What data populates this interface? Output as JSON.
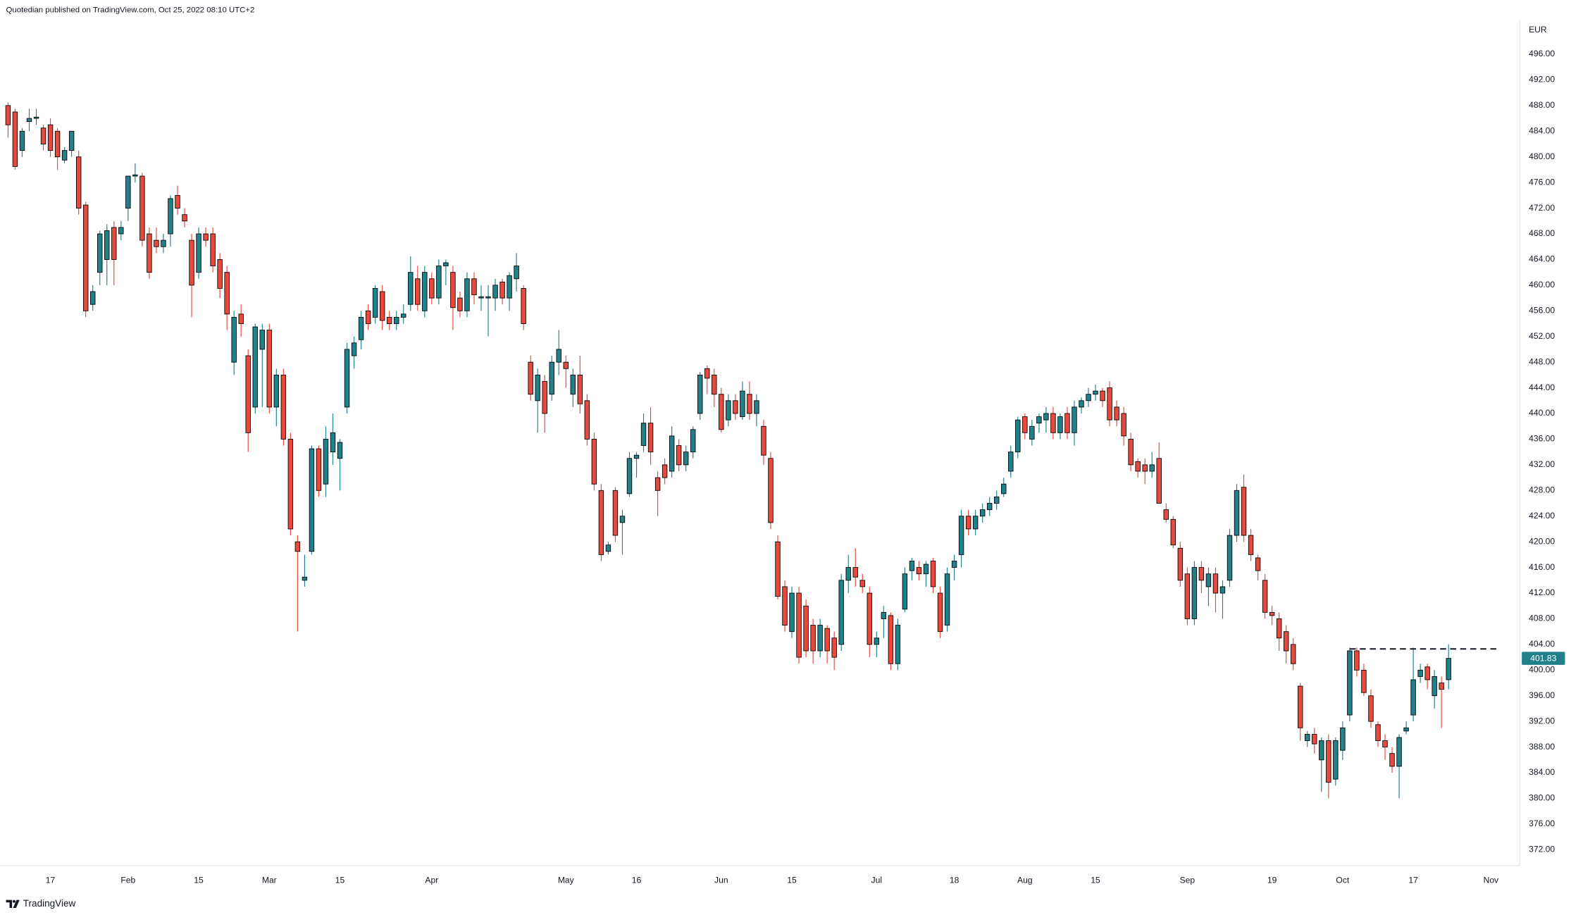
{
  "chart_data": {
    "type": "candlestick",
    "title": "Quotedian published on TradingView.com, Oct 25, 2022 08:10 UTC+2",
    "currency": "EUR",
    "up_color": "#22808a",
    "down_color": "#e8493c",
    "xlim": [
      -1.14,
      213.94
    ],
    "ylim": [
      369.5,
      504.45
    ],
    "xticks": [
      {
        "value": 6,
        "label": "17"
      },
      {
        "value": 17,
        "label": "Feb"
      },
      {
        "value": 27,
        "label": "15"
      },
      {
        "value": 37,
        "label": "Mar"
      },
      {
        "value": 47,
        "label": "15"
      },
      {
        "value": 60,
        "label": "Apr"
      },
      {
        "value": 79,
        "label": "May"
      },
      {
        "value": 89,
        "label": "16"
      },
      {
        "value": 101,
        "label": "Jun"
      },
      {
        "value": 111,
        "label": "15"
      },
      {
        "value": 123,
        "label": "Jul"
      },
      {
        "value": 134,
        "label": "18"
      },
      {
        "value": 144,
        "label": "Aug"
      },
      {
        "value": 154,
        "label": "15"
      },
      {
        "value": 167,
        "label": "Sep"
      },
      {
        "value": 179,
        "label": "19"
      },
      {
        "value": 189,
        "label": "Oct"
      },
      {
        "value": 199,
        "label": "17"
      },
      {
        "value": 210,
        "label": "Nov"
      }
    ],
    "yticks": [
      {
        "value": 372,
        "label": "372.00"
      },
      {
        "value": 376,
        "label": "376.00"
      },
      {
        "value": 380,
        "label": "380.00"
      },
      {
        "value": 384,
        "label": "384.00"
      },
      {
        "value": 388,
        "label": "388.00"
      },
      {
        "value": 392,
        "label": "392.00"
      },
      {
        "value": 396,
        "label": "396.00"
      },
      {
        "value": 400,
        "label": "400.00"
      },
      {
        "value": 404,
        "label": "404.00"
      },
      {
        "value": 408,
        "label": "408.00"
      },
      {
        "value": 412,
        "label": "412.00"
      },
      {
        "value": 416,
        "label": "416.00"
      },
      {
        "value": 420,
        "label": "420.00"
      },
      {
        "value": 424,
        "label": "424.00"
      },
      {
        "value": 428,
        "label": "428.00"
      },
      {
        "value": 432,
        "label": "432.00"
      },
      {
        "value": 436,
        "label": "436.00"
      },
      {
        "value": 440,
        "label": "440.00"
      },
      {
        "value": 444,
        "label": "444.00"
      },
      {
        "value": 448,
        "label": "448.00"
      },
      {
        "value": 452,
        "label": "452.00"
      },
      {
        "value": 456,
        "label": "456.00"
      },
      {
        "value": 460,
        "label": "460.00"
      },
      {
        "value": 464,
        "label": "464.00"
      },
      {
        "value": 468,
        "label": "468.00"
      },
      {
        "value": 472,
        "label": "472.00"
      },
      {
        "value": 476,
        "label": "476.00"
      },
      {
        "value": 480,
        "label": "480.00"
      },
      {
        "value": 484,
        "label": "484.00"
      },
      {
        "value": 488,
        "label": "488.00"
      },
      {
        "value": 492,
        "label": "492.00"
      },
      {
        "value": 496,
        "label": "496.00"
      }
    ],
    "hline": {
      "value": 403.3,
      "from": 190,
      "to": 211,
      "color": "#131722"
    },
    "candles": [
      [
        488,
        488.5,
        483,
        485
      ],
      [
        487,
        487.5,
        478,
        478.5
      ],
      [
        481,
        484.5,
        480,
        484
      ],
      [
        485.5,
        487.5,
        484,
        486
      ],
      [
        486,
        487.5,
        485,
        486.2
      ],
      [
        484.5,
        485,
        481,
        482
      ],
      [
        485,
        486,
        480,
        481
      ],
      [
        484,
        484.5,
        478,
        480
      ],
      [
        479.5,
        481.5,
        479,
        481
      ],
      [
        481,
        484,
        480,
        484
      ],
      [
        480,
        481,
        471,
        472
      ],
      [
        472.5,
        473,
        455,
        456
      ],
      [
        457,
        460,
        456,
        459
      ],
      [
        462,
        468.5,
        460,
        468
      ],
      [
        464,
        469.5,
        460,
        468.5
      ],
      [
        469,
        470,
        460,
        464
      ],
      [
        468,
        470,
        467,
        469
      ],
      [
        472,
        477,
        470,
        477
      ],
      [
        477,
        479,
        476,
        477.2
      ],
      [
        477,
        477.5,
        466,
        467
      ],
      [
        468,
        469,
        461,
        462
      ],
      [
        467,
        469,
        465,
        466
      ],
      [
        466,
        468,
        465,
        467
      ],
      [
        468,
        474,
        466,
        473.5
      ],
      [
        474,
        475.5,
        471,
        472
      ],
      [
        471,
        472,
        469,
        470
      ],
      [
        467,
        468,
        455,
        460
      ],
      [
        462,
        469,
        461,
        468
      ],
      [
        468,
        469,
        466,
        467
      ],
      [
        468,
        469,
        462,
        463
      ],
      [
        464,
        465,
        458,
        459.5
      ],
      [
        462,
        463,
        453,
        455.5
      ],
      [
        448,
        456,
        446,
        455
      ],
      [
        455.5,
        457,
        452,
        454
      ],
      [
        449,
        450,
        434,
        437
      ],
      [
        441,
        454,
        440,
        453.5
      ],
      [
        450,
        454,
        441,
        453
      ],
      [
        453,
        454,
        440,
        441
      ],
      [
        441,
        447,
        438,
        446
      ],
      [
        446,
        447,
        435,
        436
      ],
      [
        436,
        437,
        421,
        422
      ],
      [
        420,
        421,
        406,
        418.5
      ],
      [
        414,
        418,
        413,
        414.5
      ],
      [
        418.5,
        435,
        418,
        434.5
      ],
      [
        434.5,
        435,
        427,
        428
      ],
      [
        429,
        438,
        427,
        436
      ],
      [
        434,
        440,
        432,
        437
      ],
      [
        433,
        436,
        428,
        435.5
      ],
      [
        441,
        451,
        440,
        450
      ],
      [
        449,
        452,
        447,
        451
      ],
      [
        451.5,
        456,
        450,
        455
      ],
      [
        456,
        457,
        453,
        454
      ],
      [
        455,
        460,
        454,
        459.5
      ],
      [
        459,
        460,
        453,
        454.5
      ],
      [
        455,
        456,
        453,
        454
      ],
      [
        454,
        456,
        453,
        455
      ],
      [
        455,
        457,
        454,
        455.5
      ],
      [
        457,
        464.5,
        456,
        462
      ],
      [
        461,
        463,
        456,
        457
      ],
      [
        456,
        463,
        455,
        462
      ],
      [
        461,
        462,
        457,
        458
      ],
      [
        458,
        464,
        457,
        463
      ],
      [
        463,
        464,
        460,
        463.5
      ],
      [
        462,
        463,
        453,
        456.5
      ],
      [
        458,
        459,
        455,
        456
      ],
      [
        456,
        462,
        455,
        461
      ],
      [
        461,
        462,
        457,
        458.5
      ],
      [
        458,
        460,
        456,
        458.2
      ],
      [
        458,
        460,
        452,
        458.2
      ],
      [
        458,
        461,
        456,
        460
      ],
      [
        460.5,
        461,
        457,
        458
      ],
      [
        458,
        462,
        456,
        461.5
      ],
      [
        461,
        465,
        459,
        463
      ],
      [
        459.5,
        460,
        453,
        454
      ],
      [
        448,
        449,
        442,
        443
      ],
      [
        442,
        447,
        437,
        446
      ],
      [
        445,
        446,
        437,
        440
      ],
      [
        443,
        449,
        442,
        448
      ],
      [
        448,
        453,
        446,
        450
      ],
      [
        448,
        449,
        444,
        447
      ],
      [
        443,
        447,
        441,
        446
      ],
      [
        446,
        449,
        440,
        441.5
      ],
      [
        442,
        443,
        435,
        436
      ],
      [
        436,
        437,
        428,
        429
      ],
      [
        428,
        429,
        417,
        418
      ],
      [
        418.5,
        420,
        418,
        419.5
      ],
      [
        428,
        428.5,
        420,
        421
      ],
      [
        423,
        425,
        418,
        424
      ],
      [
        427.5,
        434,
        427,
        433
      ],
      [
        433,
        434,
        430,
        433.5
      ],
      [
        435,
        440,
        434,
        438.5
      ],
      [
        438.5,
        441,
        432,
        434
      ],
      [
        430,
        431,
        424,
        428
      ],
      [
        432,
        433,
        429,
        430
      ],
      [
        431,
        438,
        430,
        436.5
      ],
      [
        435,
        436,
        431,
        432
      ],
      [
        432,
        435,
        431,
        434
      ],
      [
        434,
        438,
        433,
        437.5
      ],
      [
        440,
        446.5,
        439,
        446
      ],
      [
        447,
        447.5,
        443,
        445.5
      ],
      [
        446,
        447,
        441,
        443
      ],
      [
        443,
        444,
        437,
        437.5
      ],
      [
        439,
        443,
        438,
        442
      ],
      [
        442,
        443,
        439,
        440
      ],
      [
        439.5,
        445,
        439,
        443.5
      ],
      [
        443,
        445,
        439,
        440
      ],
      [
        440,
        443,
        438,
        442
      ],
      [
        438,
        439,
        432,
        433.5
      ],
      [
        433,
        434,
        422,
        423
      ],
      [
        420,
        421,
        411,
        411.5
      ],
      [
        413,
        414,
        406,
        407
      ],
      [
        406,
        413,
        405,
        412
      ],
      [
        412,
        413,
        401,
        402
      ],
      [
        410,
        411,
        402,
        403
      ],
      [
        407,
        408,
        401,
        403
      ],
      [
        403,
        408,
        402,
        407
      ],
      [
        406.5,
        407,
        401,
        403
      ],
      [
        405,
        406,
        400,
        402
      ],
      [
        404,
        415,
        403,
        414
      ],
      [
        414,
        418,
        412,
        416
      ],
      [
        416,
        419,
        413,
        414.5
      ],
      [
        414,
        415,
        412,
        413
      ],
      [
        412,
        413,
        402,
        404
      ],
      [
        404,
        406,
        402,
        405
      ],
      [
        408,
        410,
        405,
        409
      ],
      [
        408.5,
        409,
        400,
        401
      ],
      [
        401,
        408,
        400,
        407
      ],
      [
        409.5,
        416,
        409,
        415
      ],
      [
        415.5,
        417.5,
        414,
        417
      ],
      [
        416,
        417,
        414,
        415
      ],
      [
        415,
        417,
        413,
        416.5
      ],
      [
        417,
        417.5,
        412,
        413
      ],
      [
        412,
        413,
        405,
        406
      ],
      [
        407,
        416,
        406,
        415
      ],
      [
        416,
        418,
        414,
        417
      ],
      [
        418,
        425,
        416,
        424
      ],
      [
        424,
        425,
        421,
        422
      ],
      [
        422,
        425,
        421,
        424
      ],
      [
        424,
        426,
        423,
        425
      ],
      [
        425,
        427,
        424,
        426
      ],
      [
        426,
        428,
        425,
        427
      ],
      [
        427.5,
        430,
        427,
        429
      ],
      [
        431,
        435,
        430,
        434
      ],
      [
        434,
        439.5,
        433,
        439
      ],
      [
        439.5,
        440,
        436,
        437
      ],
      [
        436,
        439,
        435,
        438
      ],
      [
        438.5,
        440,
        437,
        439.5
      ],
      [
        439,
        441,
        437,
        440
      ],
      [
        440,
        441,
        436,
        437
      ],
      [
        437,
        440,
        436,
        439.5
      ],
      [
        440,
        441,
        436,
        437
      ],
      [
        437,
        442,
        435,
        441
      ],
      [
        441,
        442.5,
        440,
        442
      ],
      [
        442,
        444,
        441,
        443
      ],
      [
        443,
        444.5,
        442,
        443.5
      ],
      [
        443.5,
        444,
        441,
        442
      ],
      [
        444,
        445,
        438,
        439
      ],
      [
        441,
        442,
        438,
        439
      ],
      [
        440,
        441,
        435,
        436.5
      ],
      [
        436,
        437,
        431,
        432
      ],
      [
        432.5,
        433,
        430,
        431
      ],
      [
        432,
        433,
        429,
        431
      ],
      [
        431,
        434,
        430,
        432
      ],
      [
        433,
        435.5,
        426,
        426
      ],
      [
        425,
        426,
        423,
        423.5
      ],
      [
        423.5,
        424,
        419,
        419.5
      ],
      [
        419,
        420,
        413,
        414
      ],
      [
        415,
        416,
        407,
        408
      ],
      [
        408,
        417,
        407,
        416
      ],
      [
        416,
        417,
        412,
        414
      ],
      [
        413,
        416,
        410,
        415
      ],
      [
        415,
        416,
        409,
        412
      ],
      [
        412,
        414,
        408,
        413
      ],
      [
        414,
        422,
        413,
        421
      ],
      [
        421,
        429,
        420,
        428
      ],
      [
        428.5,
        430.5,
        420,
        421
      ],
      [
        421,
        422,
        417,
        418
      ],
      [
        417.5,
        418,
        414,
        415.5
      ],
      [
        414,
        415,
        408,
        409
      ],
      [
        409,
        410,
        407,
        408.5
      ],
      [
        408,
        409,
        403,
        405
      ],
      [
        406,
        407,
        401,
        403
      ],
      [
        404,
        405,
        400,
        401
      ],
      [
        397.5,
        398,
        389,
        391
      ],
      [
        389,
        390.5,
        388,
        390
      ],
      [
        390,
        391,
        387,
        388.5
      ],
      [
        386,
        389.5,
        381,
        389
      ],
      [
        389,
        390,
        380,
        382.5
      ],
      [
        383,
        389.5,
        382,
        389
      ],
      [
        387.5,
        392,
        386,
        391
      ],
      [
        393,
        403.5,
        392,
        403
      ],
      [
        403,
        403.5,
        399,
        400
      ],
      [
        400,
        401,
        396,
        396.5
      ],
      [
        396,
        397,
        391,
        392
      ],
      [
        391.5,
        392,
        388,
        389
      ],
      [
        389,
        390,
        386,
        388
      ],
      [
        387,
        388,
        384,
        385
      ],
      [
        385,
        390,
        380,
        389.5
      ],
      [
        390.5,
        392,
        390,
        391
      ],
      [
        393,
        403.5,
        392,
        398.5
      ],
      [
        399,
        401,
        398,
        400
      ],
      [
        400.5,
        401,
        397,
        398.5
      ],
      [
        396,
        400,
        394,
        399
      ],
      [
        398,
        399,
        391,
        397
      ],
      [
        398.5,
        404,
        397,
        401.83
      ]
    ]
  },
  "branding": "TradingView"
}
